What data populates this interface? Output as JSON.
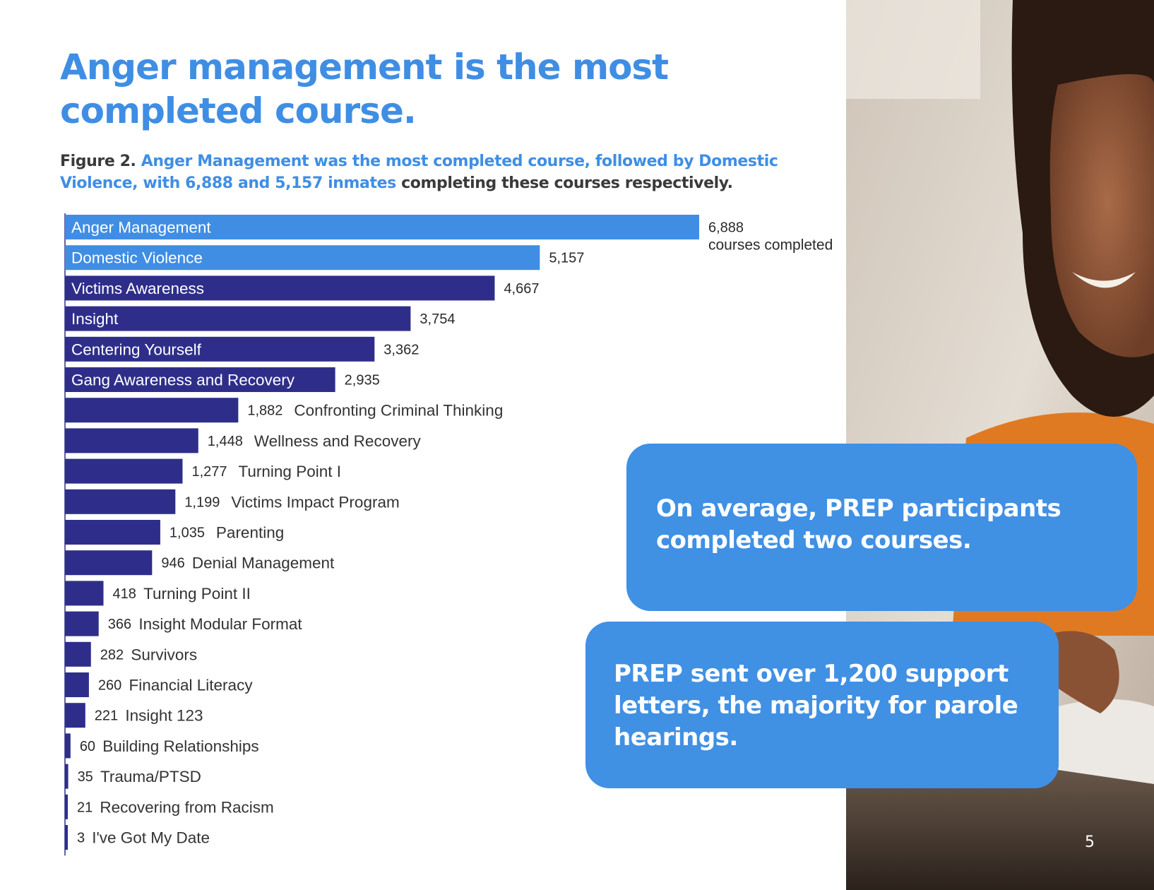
{
  "headline": "Anger management is the most completed course.",
  "caption": {
    "prefix": "Figure 2. ",
    "highlight": "Anger Management was the most completed course, followed by Domestic Violence, with 6,888 and 5,157 inmates",
    "suffix": " completing these courses respectively."
  },
  "chart_data": {
    "type": "bar",
    "orientation": "horizontal",
    "unit_label": "courses completed",
    "categories": [
      "Anger Management",
      "Domestic Violence",
      "Victims Awareness",
      "Insight",
      "Centering Yourself",
      "Gang Awareness and Recovery",
      "Confronting Criminal Thinking",
      "Wellness and Recovery",
      "Turning Point I",
      "Victims Impact Program",
      "Parenting",
      "Denial Management",
      "Turning Point II",
      "Insight Modular Format",
      "Survivors",
      "Financial Literacy",
      "Insight 123",
      "Building Relationships",
      "Trauma/PTSD",
      "Recovering from Racism",
      "I've Got My Date"
    ],
    "values": [
      6888,
      5157,
      4667,
      3754,
      3362,
      2935,
      1882,
      1448,
      1277,
      1199,
      1035,
      946,
      418,
      366,
      282,
      260,
      221,
      60,
      35,
      21,
      3
    ],
    "value_labels": [
      "6,888",
      "5,157",
      "4,667",
      "3,754",
      "3,362",
      "2,935",
      "1,882",
      "1,448",
      "1,277",
      "1,199",
      "1,035",
      "946",
      "418",
      "366",
      "282",
      "260",
      "221",
      "60",
      "35",
      "21",
      "3"
    ],
    "colors": {
      "highlight": "#3f8ee4",
      "default": "#2e2e8a",
      "axis": "#2e2e8a"
    }
  },
  "callouts": {
    "first": "On average, PREP participants completed two courses.",
    "second": "PREP sent over 1,200 support letters, the majority for parole hearings."
  },
  "page_number": "5"
}
